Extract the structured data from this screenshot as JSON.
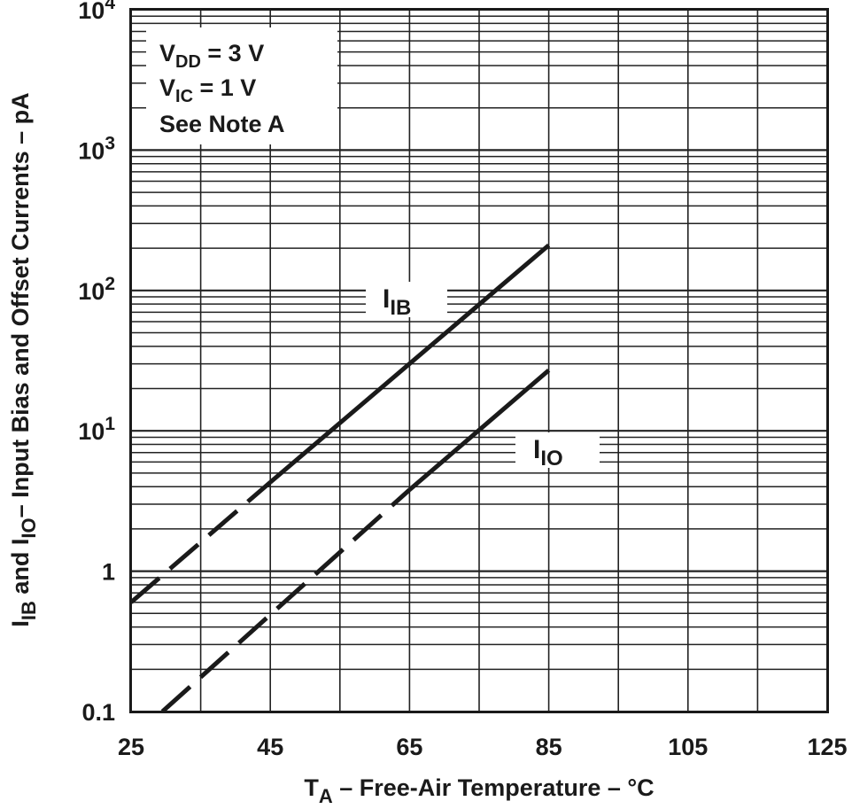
{
  "chart_data": {
    "type": "line",
    "title": "",
    "xlabel": {
      "main": "T",
      "sub": "A",
      "rest": " – Free-Air Temperature – °C"
    },
    "ylabel": {
      "p1": "I",
      "s1": "IB",
      "p2": " and I",
      "s2": "IO",
      "p3": "– Input Bias and Offset Currents – pA"
    },
    "x_scale": "linear",
    "y_scale": "log",
    "xlim": [
      25,
      125
    ],
    "ylim": [
      0.1,
      10000
    ],
    "x_ticks": [
      "25",
      "45",
      "65",
      "85",
      "105",
      "125"
    ],
    "y_ticks": [
      {
        "value": 0.1,
        "base": "0.1",
        "exp": ""
      },
      {
        "value": 1,
        "base": "1",
        "exp": ""
      },
      {
        "value": 10,
        "base": "10",
        "exp": "1"
      },
      {
        "value": 100,
        "base": "10",
        "exp": "2"
      },
      {
        "value": 1000,
        "base": "10",
        "exp": "3"
      },
      {
        "value": 10000,
        "base": "10",
        "exp": "4"
      }
    ],
    "grid": true,
    "conditions": [
      {
        "main": "V",
        "sub": "DD",
        "rest": " = 3 V"
      },
      {
        "main": "V",
        "sub": "IC",
        "rest": " = 1 V"
      },
      {
        "main": "See Note A",
        "sub": "",
        "rest": ""
      }
    ],
    "series": [
      {
        "name": "IIB",
        "label_main": "I",
        "label_sub": "IB",
        "label_at": {
          "x": 70,
          "y": 110
        },
        "dashed_segment": {
          "x": [
            25,
            45
          ],
          "y": [
            0.6,
            4.3
          ]
        },
        "solid_segment": {
          "x": [
            45,
            85
          ],
          "y": [
            4.3,
            210
          ]
        }
      },
      {
        "name": "IIO",
        "label_main": "I",
        "label_sub": "IO",
        "label_at": {
          "x": 91.5,
          "y": 11
        },
        "dashed_segment": {
          "x": [
            29.5,
            65
          ],
          "y": [
            0.1,
            3.8
          ]
        },
        "solid_segment": {
          "x": [
            65,
            85
          ],
          "y": [
            3.8,
            27
          ]
        }
      }
    ]
  }
}
